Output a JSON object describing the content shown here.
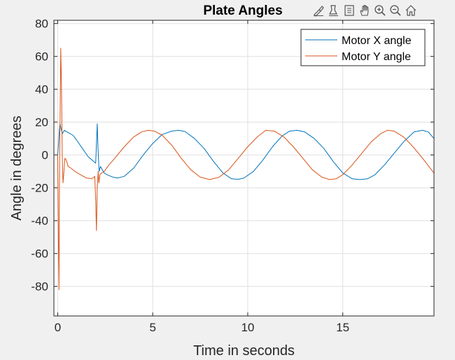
{
  "chart_data": {
    "type": "line",
    "title": "Plate Angles",
    "xlabel": "Time in seconds",
    "ylabel": "Angle in degrees",
    "xlim": [
      -0.2,
      19.8
    ],
    "ylim": [
      -98,
      82
    ],
    "xticks": [
      0,
      5,
      10,
      15
    ],
    "yticks": [
      80,
      60,
      40,
      20,
      0,
      -20,
      -40,
      -60,
      -80
    ],
    "grid": true,
    "legend_position": "top-right",
    "series": [
      {
        "name": "Motor X angle",
        "color": "#0072bd",
        "x": [
          0.0,
          0.05,
          0.08,
          0.12,
          0.18,
          0.25,
          0.35,
          0.5,
          0.8,
          1.0,
          1.3,
          1.6,
          1.9,
          2.0,
          2.05,
          2.08,
          2.12,
          2.18,
          2.25,
          2.35,
          2.45,
          2.6,
          2.9,
          3.15,
          3.5,
          4.0,
          4.5,
          5.0,
          5.5,
          6.0,
          6.35,
          6.7,
          7.2,
          7.7,
          8.2,
          8.7,
          9.15,
          9.5,
          9.8,
          10.3,
          10.8,
          11.3,
          11.8,
          12.2,
          12.6,
          13.0,
          13.5,
          14.0,
          14.5,
          15.0,
          15.5,
          15.9,
          16.3,
          16.7,
          17.2,
          17.7,
          18.2,
          18.75,
          19.2,
          19.5,
          19.8
        ],
        "y": [
          0,
          8,
          14,
          19,
          16,
          13,
          15,
          14,
          12,
          9,
          4,
          -1,
          -4,
          -5,
          10,
          19,
          4,
          -10,
          -7,
          -9,
          -11,
          -12,
          -13.5,
          -14,
          -13,
          -8,
          0,
          7,
          12.5,
          14.5,
          15,
          14.3,
          10,
          4,
          -4,
          -11,
          -14.5,
          -14.8,
          -14,
          -10,
          -3,
          5,
          11.5,
          14.5,
          15,
          14,
          10,
          4,
          -4,
          -11,
          -14.5,
          -15,
          -14.5,
          -12,
          -6,
          1,
          8,
          14,
          15,
          14,
          10
        ]
      },
      {
        "name": "Motor Y angle",
        "color": "#d95319",
        "x": [
          0.0,
          0.04,
          0.07,
          0.09,
          0.13,
          0.16,
          0.2,
          0.24,
          0.28,
          0.33,
          0.38,
          0.45,
          0.55,
          0.7,
          0.9,
          1.2,
          1.5,
          1.8,
          1.95,
          2.0,
          2.04,
          2.08,
          2.13,
          2.17,
          2.22,
          2.3,
          2.45,
          2.7,
          3.0,
          3.5,
          4.0,
          4.4,
          4.75,
          5.1,
          5.5,
          6.0,
          6.5,
          7.0,
          7.5,
          8.0,
          8.5,
          9.0,
          9.5,
          10.0,
          10.5,
          10.95,
          11.4,
          11.9,
          12.4,
          12.9,
          13.4,
          13.9,
          14.3,
          14.65,
          15.0,
          15.5,
          16.0,
          16.5,
          17.0,
          17.35,
          17.7,
          18.2,
          18.7,
          19.2,
          19.8
        ],
        "y": [
          0,
          -55,
          -82,
          -20,
          30,
          65,
          40,
          0,
          -17,
          -10,
          -2,
          -3,
          -7,
          -8,
          -10,
          -12,
          -14,
          -14.5,
          -13,
          -28,
          -46,
          -20,
          -10,
          -17,
          -12,
          -11,
          -10,
          -6,
          -2,
          5,
          11,
          14,
          15,
          14.5,
          12,
          6,
          -2,
          -9,
          -13.5,
          -15,
          -13.5,
          -9,
          -2,
          5,
          11,
          15,
          14.5,
          11,
          5,
          -2,
          -9,
          -13.5,
          -15,
          -14.5,
          -12,
          -6,
          1,
          8,
          13,
          15,
          14.5,
          11,
          5,
          -2,
          -11
        ]
      }
    ]
  },
  "toolbar": [
    {
      "name": "brush-icon"
    },
    {
      "name": "data-cursor-icon"
    },
    {
      "name": "data-tips-icon"
    },
    {
      "name": "pan-icon"
    },
    {
      "name": "zoom-in-icon"
    },
    {
      "name": "zoom-out-icon"
    },
    {
      "name": "home-icon"
    }
  ]
}
